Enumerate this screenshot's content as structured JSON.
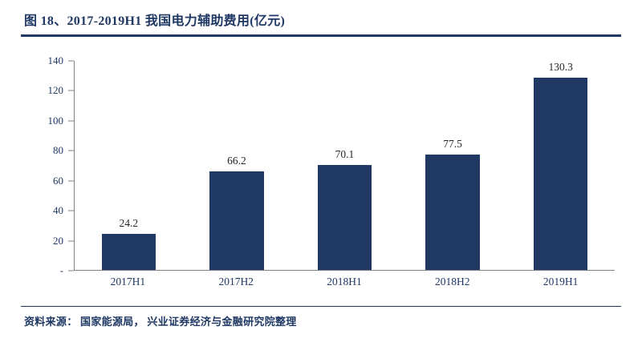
{
  "header": {
    "title": "图 18、2017-2019H1 我国电力辅助费用(亿元)"
  },
  "chart_data": {
    "type": "bar",
    "title": "图 18、2017-2019H1 我国电力辅助费用(亿元)",
    "categories": [
      "2017H1",
      "2017H2",
      "2018H1",
      "2018H2",
      "2019H1"
    ],
    "values": [
      24.2,
      66.2,
      70.1,
      77.5,
      130.3
    ],
    "data_labels": [
      "24.2",
      "66.2",
      "70.1",
      "77.5",
      "130.3"
    ],
    "xlabel": "",
    "ylabel": "",
    "ylim": [
      0,
      140
    ],
    "ytick_labels": [
      "140",
      "120",
      "100",
      "80",
      "60",
      "40",
      "20",
      "-"
    ],
    "grid": false,
    "legend": "none"
  },
  "footer": {
    "source": "资料来源： 国家能源局， 兴业证券经济与金融研究院整理"
  },
  "colors": {
    "accent": "#1F3864",
    "bar": "#1F3864",
    "axis": "#808080",
    "data_label": "#262626"
  }
}
